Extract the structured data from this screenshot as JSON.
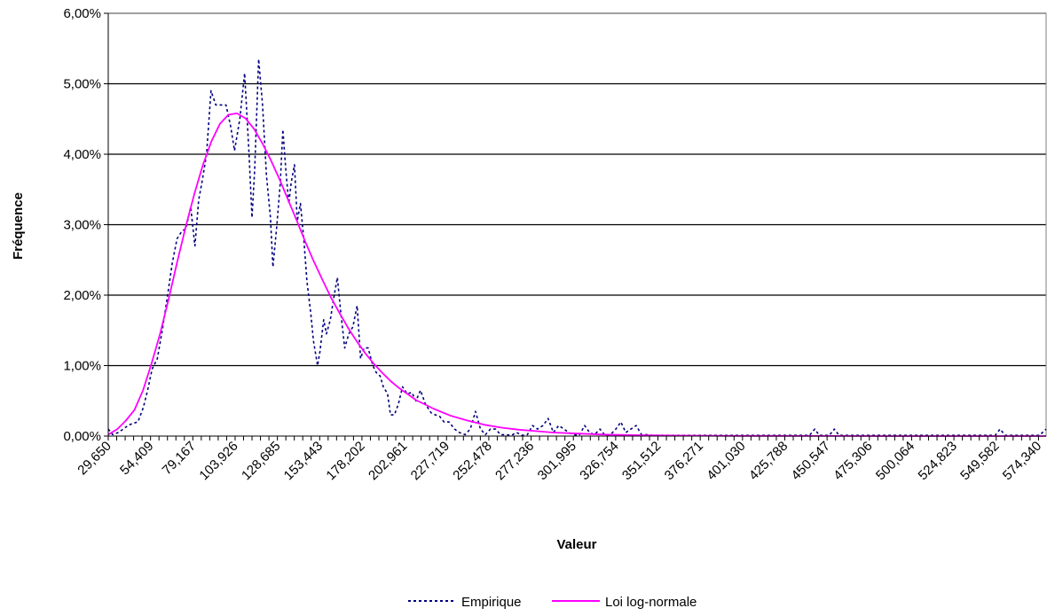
{
  "chart_data": {
    "type": "line",
    "title": "",
    "xlabel": "Valeur",
    "ylabel": "Fréquence",
    "ylim": [
      0,
      0.06
    ],
    "y_ticks": [
      "0,00%",
      "1,00%",
      "2,00%",
      "3,00%",
      "4,00%",
      "5,00%",
      "6,00%"
    ],
    "x_tick_labels": [
      "29,650",
      "54,409",
      "79,167",
      "103,926",
      "128,685",
      "153,443",
      "178,202",
      "202,961",
      "227,719",
      "252,478",
      "277,236",
      "301,995",
      "326,754",
      "351,512",
      "376,271",
      "401,030",
      "425,788",
      "450,547",
      "475,306",
      "500,064",
      "524,823",
      "549,582",
      "574,340"
    ],
    "x_tick_values": [
      29.65,
      54.409,
      79.167,
      103.926,
      128.685,
      153.443,
      178.202,
      202.961,
      227.719,
      252.478,
      277.236,
      301.995,
      326.754,
      351.512,
      376.271,
      401.03,
      425.788,
      450.547,
      475.306,
      500.064,
      524.823,
      549.582,
      574.34
    ],
    "xlim": [
      29.65,
      578.8
    ],
    "grid": true,
    "legend_position": "bottom",
    "colors": {
      "empirique": "#000080",
      "lognormale": "#ff00ff"
    },
    "series": [
      {
        "name": "Empirique",
        "style": "dashed",
        "x": [
          29.65,
          32.3,
          35.4,
          38.5,
          41.2,
          43.9,
          47.0,
          50.1,
          52.7,
          55.3,
          58.4,
          61.3,
          64.1,
          67.1,
          69.9,
          72.6,
          75.2,
          77.9,
          80.4,
          82.6,
          84.5,
          87.2,
          89.8,
          92.6,
          95.5,
          98.6,
          101.3,
          103.6,
          106.7,
          109.5,
          112.1,
          113.8,
          115.4,
          117.7,
          120.0,
          122.3,
          124.6,
          126.1,
          128.4,
          130.4,
          131.9,
          133.7,
          135.4,
          136.8,
          138.7,
          140.3,
          142.2,
          144.3,
          146.0,
          148.2,
          149.8,
          152.2,
          153.6,
          155.8,
          157.4,
          159.7,
          161.6,
          163.8,
          165.8,
          168.1,
          170.5,
          172.9,
          175.4,
          177.4,
          179.5,
          181.8,
          184.6,
          186.6,
          188.9,
          190.7,
          193.2,
          194.9,
          197.2,
          199.5,
          202.0,
          204.7,
          207.4,
          209.8,
          212.5,
          215.4,
          218.7,
          221.2,
          223.7,
          226.3,
          229.2,
          232.4,
          235.3,
          238.6,
          241.6,
          244.7,
          247.6,
          250.5,
          253.4,
          256.4,
          259.4,
          262.6,
          265.7,
          268.8,
          272.0,
          275.1,
          278.1,
          281.0,
          284.2,
          287.2,
          290.3,
          293.4,
          296.5,
          299.3,
          302.2,
          305.4,
          308.6,
          311.5,
          314.4,
          317.6,
          320.6,
          323.7,
          326.9,
          329.8,
          332.7,
          335.7,
          338.8,
          341.9,
          345.0,
          348.2,
          351.3,
          354.2,
          357.2,
          360.3,
          363.3,
          366.3,
          369.4,
          372.3,
          375.4,
          378.6,
          381.6,
          384.4,
          387.4,
          390.4,
          393.6,
          396.7,
          399.8,
          402.7,
          405.5,
          408.4,
          411.3,
          414.1,
          417.0,
          419.8,
          422.8,
          425.8,
          428.6,
          431.6,
          434.5,
          437.5,
          440.3,
          443.3,
          446.0,
          448.9,
          451.9,
          454.8,
          457.6,
          460.5,
          463.4,
          466.3,
          469.2,
          472.0,
          474.9,
          477.7,
          480.5,
          483.2,
          486.1,
          488.9,
          491.8,
          494.7,
          497.6,
          500.4,
          503.2,
          506.1,
          509.0,
          511.8,
          514.6,
          517.5,
          520.4,
          523.3,
          526.1,
          529.0,
          531.9,
          534.7,
          537.6,
          540.5,
          543.3,
          546.2,
          549.0,
          551.9,
          554.8,
          557.6,
          560.5,
          563.4,
          566.3,
          569.1,
          572.0,
          574.9,
          578.8
        ],
        "y": [
          0.001,
          0.0002,
          0.0005,
          0.001,
          0.0015,
          0.0018,
          0.002,
          0.004,
          0.0065,
          0.0095,
          0.011,
          0.015,
          0.0195,
          0.0245,
          0.028,
          0.029,
          0.0295,
          0.0325,
          0.027,
          0.0335,
          0.036,
          0.04,
          0.049,
          0.047,
          0.047,
          0.047,
          0.044,
          0.0405,
          0.045,
          0.0515,
          0.04,
          0.031,
          0.038,
          0.0535,
          0.047,
          0.037,
          0.031,
          0.024,
          0.03,
          0.036,
          0.0435,
          0.0375,
          0.033,
          0.036,
          0.0385,
          0.0305,
          0.033,
          0.0275,
          0.022,
          0.0175,
          0.0135,
          0.01,
          0.012,
          0.0165,
          0.0145,
          0.0165,
          0.0195,
          0.0225,
          0.0175,
          0.0125,
          0.0145,
          0.0155,
          0.0185,
          0.011,
          0.0125,
          0.0125,
          0.01,
          0.009,
          0.0085,
          0.007,
          0.006,
          0.003,
          0.003,
          0.0045,
          0.007,
          0.006,
          0.0062,
          0.005,
          0.0065,
          0.0045,
          0.0033,
          0.003,
          0.0028,
          0.002,
          0.002,
          0.001,
          0.0005,
          0.0002,
          0.001,
          0.0035,
          0.001,
          0.0002,
          0.001,
          0.001,
          0.0002,
          0.0002,
          0.0001,
          0.0005,
          0.0001,
          0.0002,
          0.0015,
          0.001,
          0.0015,
          0.0025,
          0.0005,
          0.0015,
          0.001,
          0.0005,
          0.0002,
          0.0001,
          0.0015,
          0.0005,
          0.0002,
          0.001,
          0.0001,
          0.0002,
          0.001,
          0.002,
          0.0005,
          0.001,
          0.0015,
          0.0002,
          0.0002,
          0.0001,
          0.0001,
          0.0001,
          0.0001,
          0.0001,
          0.0001,
          0.0001,
          0.0001,
          0.0001,
          0.0001,
          0.0001,
          0.0001,
          0.0001,
          0.0001,
          0.0001,
          0.0001,
          0.0001,
          0.0001,
          0.0001,
          0.0001,
          0.0001,
          0.0001,
          0.0001,
          0.0001,
          0.0001,
          0.0001,
          0.0001,
          0.0001,
          0.0001,
          0.0001,
          0.0001,
          0.0001,
          0.001,
          0.0001,
          0.0001,
          0.0001,
          0.001,
          0.0001,
          0.0001,
          0.0001,
          0.0001,
          0.0001,
          0.0001,
          0.0001,
          0.0001,
          0.0001,
          0.0001,
          0.0001,
          0.0001,
          0.0001,
          0.0001,
          0.0001,
          0.0001,
          0.0001,
          0.0001,
          0.0001,
          0.0001,
          0.0001,
          0.0001,
          0.0001,
          0.0001,
          0.0001,
          0.0001,
          0.0001,
          0.0001,
          0.0001,
          0.0001,
          0.0001,
          0.0001,
          0.0001,
          0.001,
          0.0001,
          0.0001,
          0.0001,
          0.0001,
          0.0001,
          0.0001,
          0.0001,
          0.0001,
          0.001
        ]
      },
      {
        "name": "Loi log-normale",
        "style": "solid",
        "x": [
          29.65,
          35.0,
          40.0,
          45.0,
          50.0,
          55.0,
          60.0,
          65.0,
          70.0,
          75.0,
          80.0,
          85.0,
          90.0,
          95.0,
          100.0,
          105.0,
          110.0,
          115.0,
          120.0,
          125.0,
          130.0,
          135.0,
          140.0,
          145.0,
          150.0,
          155.0,
          160.0,
          165.0,
          170.0,
          175.0,
          180.0,
          185.0,
          190.0,
          195.0,
          200.0,
          210.0,
          220.0,
          230.0,
          240.0,
          250.0,
          260.0,
          270.0,
          280.0,
          290.0,
          300.0,
          320.0,
          340.0,
          360.0,
          380.0,
          400.0,
          420.0,
          440.0,
          460.0,
          480.0,
          500.0,
          520.0,
          540.0,
          560.0,
          578.8
        ],
        "y": [
          0.0002,
          0.001,
          0.0022,
          0.0037,
          0.0065,
          0.0103,
          0.0145,
          0.0194,
          0.0247,
          0.0297,
          0.0343,
          0.0384,
          0.0418,
          0.0443,
          0.0456,
          0.0458,
          0.0451,
          0.0436,
          0.0415,
          0.0391,
          0.0364,
          0.0335,
          0.0306,
          0.0276,
          0.0248,
          0.0222,
          0.0197,
          0.0175,
          0.0154,
          0.0135,
          0.0118,
          0.0103,
          0.009,
          0.0078,
          0.0068,
          0.0051,
          0.0039,
          0.0029,
          0.0022,
          0.0016,
          0.0012,
          0.0009,
          0.0007,
          0.0005,
          0.0004,
          0.00022,
          0.00013,
          8e-05,
          5e-05,
          3e-05,
          2e-05,
          1.2e-05,
          8e-06,
          5e-06,
          3e-06,
          2e-06,
          1.2e-06,
          8e-07,
          5e-07
        ]
      }
    ]
  }
}
